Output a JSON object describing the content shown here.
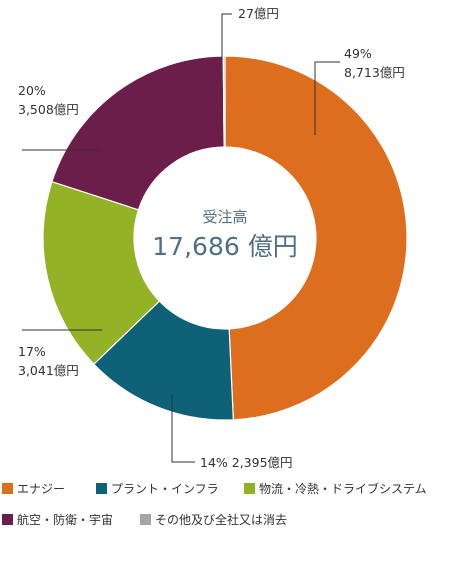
{
  "chart_data": {
    "type": "donut",
    "title": "受注高",
    "total_label": "17,686 億円",
    "unit": "億円",
    "slices": [
      {
        "name": "エナジー",
        "value": 8713,
        "color": "#dd6e1d",
        "label_lines": [
          "49%",
          "8,713億円"
        ]
      },
      {
        "name": "プラント・インフラ",
        "value": 2395,
        "color": "#0e6177",
        "label_lines": [
          "14%  2,395億円"
        ]
      },
      {
        "name": "物流・冷熱・ドライブシステム",
        "value": 3041,
        "color": "#94b226",
        "label_lines": [
          "17%",
          "3,041億円"
        ]
      },
      {
        "name": "航空・防衛・宇宙",
        "value": 3508,
        "color": "#6b1e4a",
        "label_lines": [
          "20%",
          "3,508億円"
        ]
      },
      {
        "name": "その他及び全社又は消去",
        "value": 27,
        "color": "#a6a6a6",
        "label_lines": [
          "27億円"
        ]
      }
    ],
    "legend": [
      {
        "name": "エナジー",
        "color": "#dd6e1d"
      },
      {
        "name": "プラント・インフラ",
        "color": "#0e6177"
      },
      {
        "name": "物流・冷熱・ドライブシステム",
        "color": "#94b226"
      },
      {
        "name": "航空・防衛・宇宙",
        "color": "#6b1e4a"
      },
      {
        "name": "その他及び全社又は消去",
        "color": "#a6a6a6"
      }
    ]
  }
}
